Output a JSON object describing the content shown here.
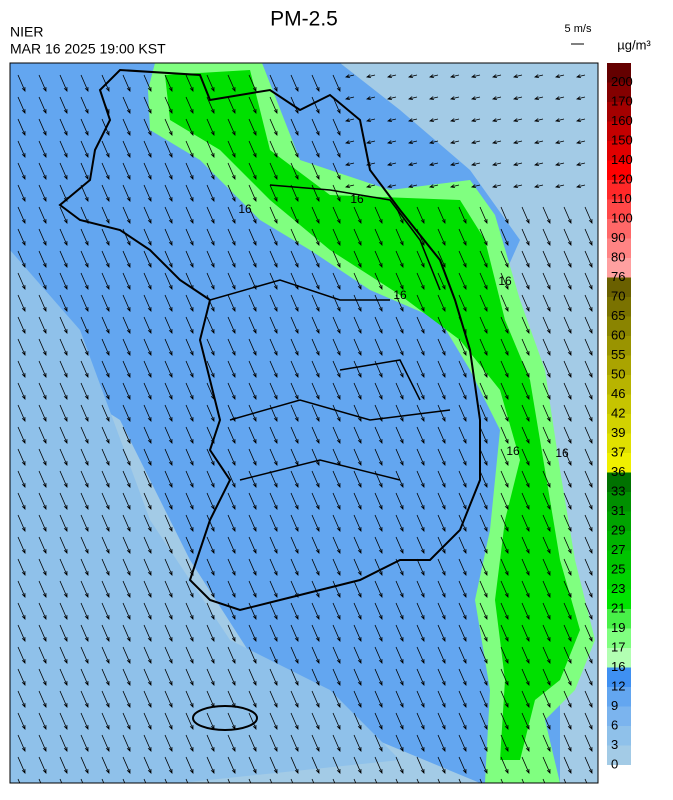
{
  "header": {
    "agency": "NIER",
    "timestamp": "MAR 16 2025 19:00 KST",
    "title": "PM-2.5"
  },
  "wind_scale": {
    "label": "5 m/s"
  },
  "colorbar": {
    "unit": "µg/m³",
    "labels": [
      0,
      3,
      6,
      9,
      12,
      16,
      17,
      19,
      21,
      23,
      25,
      27,
      29,
      31,
      33,
      36,
      37,
      39,
      42,
      46,
      50,
      55,
      60,
      65,
      70,
      76,
      80,
      90,
      100,
      110,
      120,
      140,
      150,
      160,
      170,
      200
    ],
    "colors": [
      "#a3cbe6",
      "#8fc1ea",
      "#7bb4ee",
      "#63a6f0",
      "#3f90f2",
      "#b2ffb2",
      "#80ff80",
      "#48f048",
      "#00e400",
      "#00d400",
      "#00c400",
      "#00b400",
      "#00a400",
      "#009000",
      "#007200",
      "#f0f000",
      "#e0e000",
      "#d2d200",
      "#c6c400",
      "#b8b400",
      "#aaa400",
      "#9a9400",
      "#8a8400",
      "#7a7200",
      "#6a6000",
      "#ffa0a0",
      "#ff8484",
      "#ff6868",
      "#ff4848",
      "#ff2828",
      "#ff0000",
      "#e00000",
      "#c40000",
      "#a40000",
      "#840000",
      "#640000"
    ]
  },
  "contour_labels": [
    "16",
    "16",
    "16",
    "16",
    "16",
    "16"
  ]
}
